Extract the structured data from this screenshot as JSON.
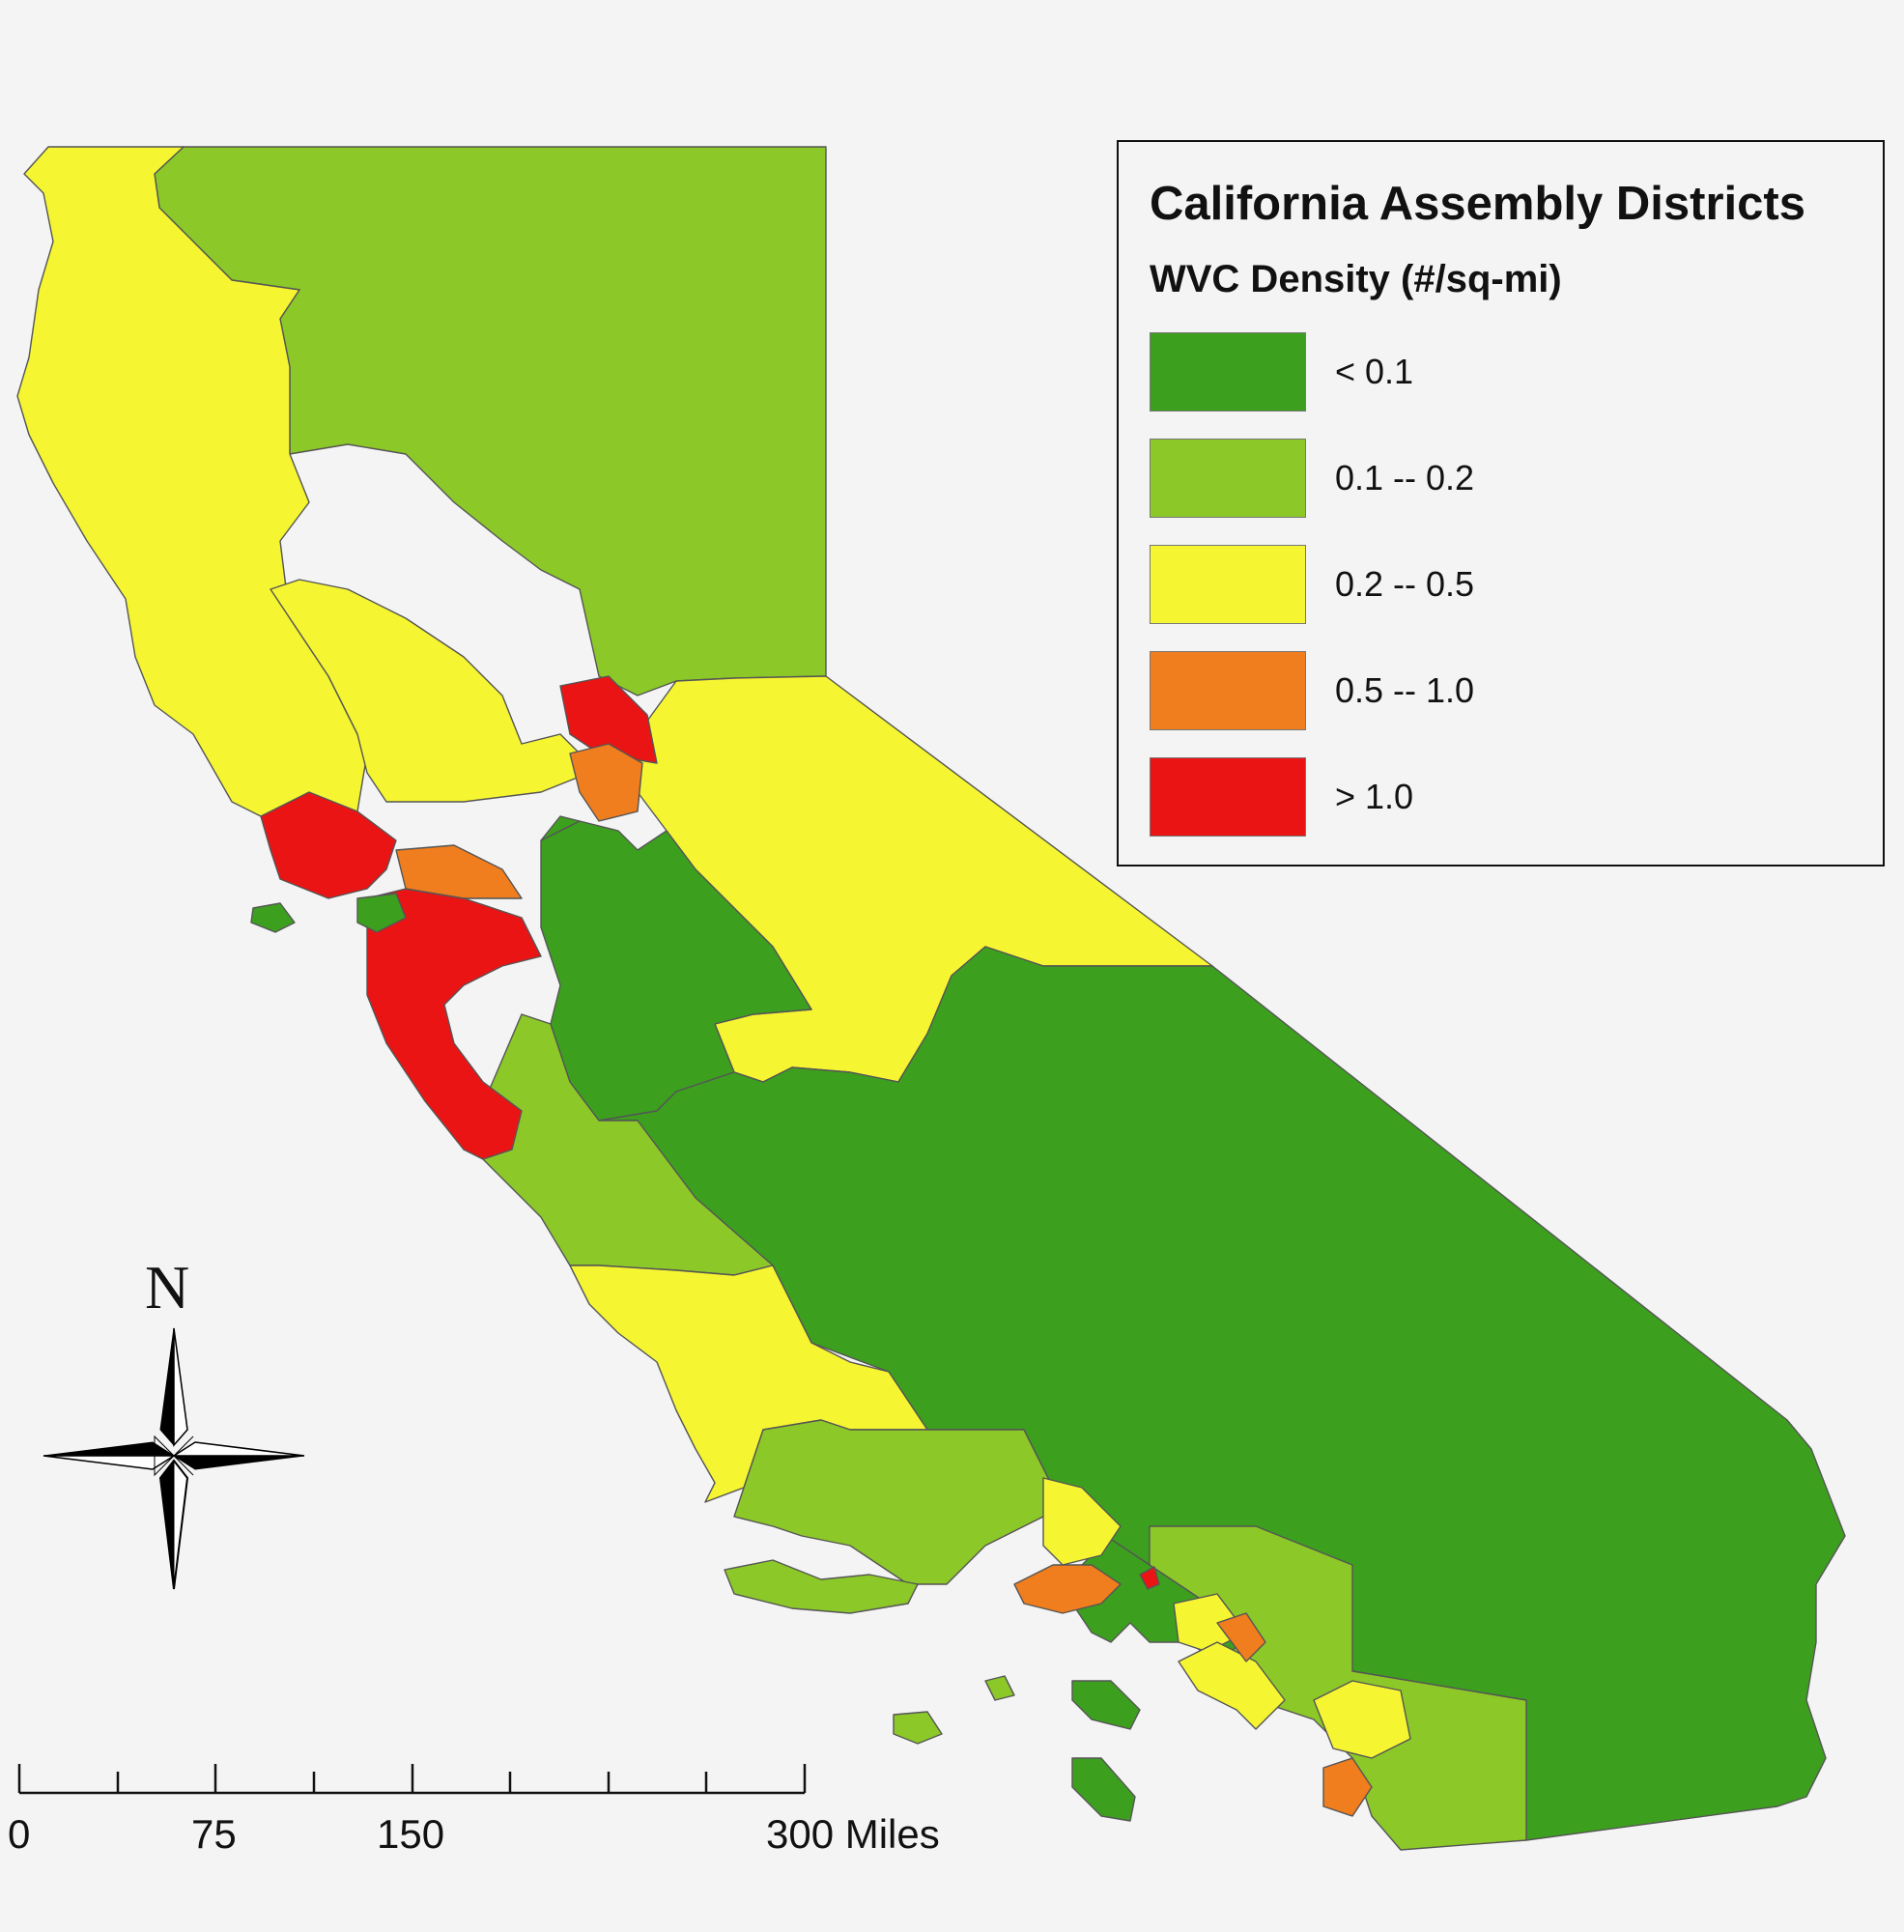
{
  "legend": {
    "title": "California Assembly Districts",
    "subtitle": "WVC Density (#/sq-mi)",
    "classes": [
      {
        "label": "< 0.1",
        "color": "#3ca01e"
      },
      {
        "label": "0.1 -- 0.2",
        "color": "#8cc828"
      },
      {
        "label": "0.2 -- 0.5",
        "color": "#f5f532"
      },
      {
        "label": "0.5 -- 1.0",
        "color": "#f07d1e"
      },
      {
        "label": "> 1.0",
        "color": "#eb1414"
      }
    ]
  },
  "north_arrow": {
    "label": "N"
  },
  "scale_bar": {
    "labels": [
      "0",
      "75",
      "150",
      "300 Miles"
    ]
  }
}
